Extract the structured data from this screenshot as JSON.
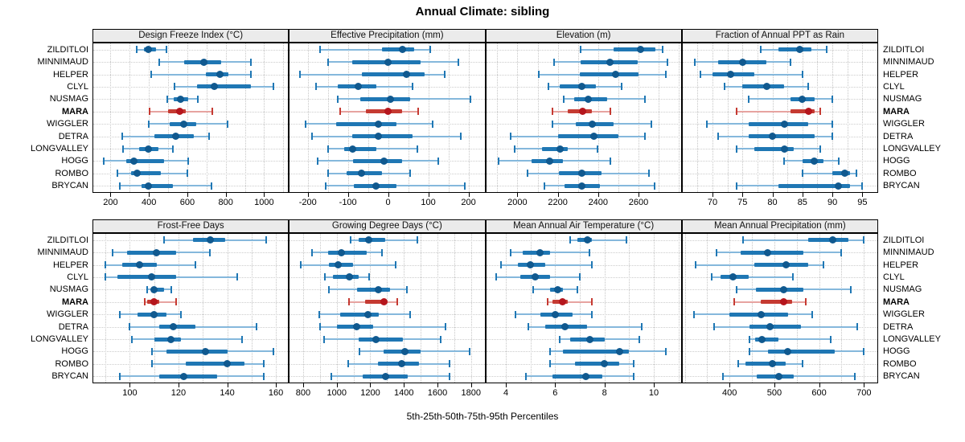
{
  "title": "Annual Climate: sibling",
  "caption": "5th-25th-50th-75th-95th Percentiles",
  "stations": [
    "ZILDITLOI",
    "MINNIMAUD",
    "HELPER",
    "CLYL",
    "NUSMAG",
    "MARA",
    "WIGGLER",
    "DETRA",
    "LONGVALLEY",
    "HOGG",
    "ROMBO",
    "BRYCAN"
  ],
  "highlight_station": "MARA",
  "colors": {
    "normal": {
      "light": "#85b8dc",
      "main": "#1f77b4",
      "dot": "#10598f"
    },
    "highlight": {
      "light": "#e7a3a0",
      "main": "#c53a32",
      "dot": "#b5161d"
    },
    "grid": "#c6c6c6",
    "strip_bg": "#ebebeb",
    "border": "#000000"
  },
  "chart_data": {
    "type": "percentile-dotplot-trellis",
    "percentile_labels": [
      "5th",
      "25th",
      "50th",
      "75th",
      "95th"
    ],
    "legend_note": "median dot, 25-75 thick bar, 5-95 whisker; MARA highlighted red",
    "grid": "dotted",
    "panels": [
      {
        "title": "Design Freeze Index (°C)",
        "xlim": [
          110,
          1125
        ],
        "ticks": [
          200,
          400,
          600,
          800,
          1000
        ],
        "minor_step": 100,
        "values": [
          [
            335,
            375,
            395,
            435,
            490
          ],
          [
            455,
            585,
            685,
            775,
            930
          ],
          [
            410,
            695,
            770,
            815,
            930
          ],
          [
            535,
            650,
            740,
            930,
            1050
          ],
          [
            495,
            530,
            565,
            605,
            655
          ],
          [
            405,
            500,
            560,
            590,
            730
          ],
          [
            400,
            510,
            580,
            645,
            810
          ],
          [
            260,
            430,
            540,
            635,
            715
          ],
          [
            265,
            350,
            395,
            450,
            525
          ],
          [
            165,
            280,
            320,
            480,
            605
          ],
          [
            235,
            305,
            340,
            460,
            600
          ],
          [
            250,
            360,
            395,
            525,
            725
          ]
        ]
      },
      {
        "title": "Effective Precipitation (mm)",
        "xlim": [
          -245,
          240
        ],
        "ticks": [
          -200,
          -100,
          0,
          100,
          200
        ],
        "minor_step": 50,
        "values": [
          [
            -170,
            -15,
            35,
            65,
            105
          ],
          [
            -150,
            -90,
            0,
            80,
            175
          ],
          [
            -220,
            -65,
            45,
            90,
            140
          ],
          [
            -180,
            -125,
            -75,
            -30,
            60
          ],
          [
            -125,
            -70,
            5,
            55,
            205
          ],
          [
            -120,
            -55,
            0,
            35,
            75
          ],
          [
            -205,
            -130,
            -25,
            20,
            110
          ],
          [
            -190,
            -90,
            -25,
            60,
            180
          ],
          [
            -150,
            -110,
            -88,
            -30,
            72
          ],
          [
            -175,
            -88,
            -10,
            35,
            125
          ],
          [
            -150,
            -103,
            -66,
            -15,
            55
          ],
          [
            -155,
            -85,
            -30,
            20,
            190
          ]
        ]
      },
      {
        "title": "Elevation (m)",
        "xlim": [
          1845,
          2810
        ],
        "ticks": [
          2000,
          2200,
          2400,
          2600
        ],
        "minor_step": 100,
        "values": [
          [
            2315,
            2475,
            2610,
            2685,
            2720
          ],
          [
            2180,
            2315,
            2460,
            2595,
            2745
          ],
          [
            2105,
            2310,
            2485,
            2600,
            2735
          ],
          [
            2155,
            2210,
            2320,
            2390,
            2515
          ],
          [
            2230,
            2280,
            2350,
            2445,
            2630
          ],
          [
            2175,
            2250,
            2325,
            2370,
            2460
          ],
          [
            2175,
            2290,
            2370,
            2475,
            2665
          ],
          [
            1965,
            2200,
            2380,
            2500,
            2630
          ],
          [
            1985,
            2120,
            2210,
            2250,
            2395
          ],
          [
            1905,
            2070,
            2160,
            2225,
            2460
          ],
          [
            2050,
            2205,
            2320,
            2415,
            2650
          ],
          [
            2135,
            2235,
            2320,
            2410,
            2680
          ]
        ]
      },
      {
        "title": "Fraction of Annual PPT as Rain",
        "xlim": [
          65,
          97.5
        ],
        "ticks": [
          70,
          75,
          80,
          85,
          90,
          95
        ],
        "minor_step": 2.5,
        "values": [
          [
            78,
            81,
            84.5,
            86.5,
            89
          ],
          [
            67,
            71,
            75,
            79,
            83
          ],
          [
            68,
            70,
            73,
            77,
            85
          ],
          [
            72,
            75,
            79,
            82,
            86
          ],
          [
            76,
            83,
            85,
            87,
            90
          ],
          [
            74,
            83,
            86,
            87,
            88
          ],
          [
            69,
            76,
            82,
            86,
            90
          ],
          [
            71,
            76,
            80,
            87,
            90
          ],
          [
            74,
            77,
            82,
            83.5,
            88
          ],
          [
            82,
            85,
            87,
            88.5,
            91
          ],
          [
            85,
            90,
            92,
            93,
            94
          ],
          [
            74,
            81,
            91,
            93,
            95
          ]
        ]
      },
      {
        "title": "Frost-Free Days",
        "xlim": [
          85,
          165
        ],
        "ticks": [
          100,
          120,
          140,
          160
        ],
        "minor_step": 10,
        "values": [
          [
            114,
            126,
            133,
            139,
            156
          ],
          [
            93,
            99,
            111,
            119,
            133
          ],
          [
            90,
            97,
            104,
            111,
            127
          ],
          [
            90,
            95,
            109,
            119,
            144
          ],
          [
            107,
            109,
            110,
            114,
            117
          ],
          [
            106,
            107,
            110,
            112,
            119
          ],
          [
            96,
            103,
            110,
            115,
            121
          ],
          [
            100,
            112,
            118,
            127,
            152
          ],
          [
            101,
            110,
            117,
            121,
            146
          ],
          [
            109,
            115,
            131,
            140,
            159
          ],
          [
            109,
            123,
            140,
            147,
            155
          ],
          [
            96,
            112,
            122,
            136,
            155
          ]
        ]
      },
      {
        "title": "Growing Degree Days (°C)",
        "xlim": [
          720,
          1880
        ],
        "ticks": [
          800,
          1000,
          1200,
          1400,
          1600,
          1800
        ],
        "minor_step": 100,
        "values": [
          [
            1085,
            1130,
            1190,
            1290,
            1480
          ],
          [
            855,
            950,
            1030,
            1180,
            1270
          ],
          [
            785,
            955,
            1010,
            1095,
            1350
          ],
          [
            930,
            975,
            1075,
            1130,
            1195
          ],
          [
            955,
            1120,
            1250,
            1315,
            1420
          ],
          [
            1075,
            1170,
            1280,
            1300,
            1360
          ],
          [
            895,
            1020,
            1185,
            1250,
            1435
          ],
          [
            900,
            1000,
            1120,
            1215,
            1650
          ],
          [
            925,
            1130,
            1235,
            1395,
            1620
          ],
          [
            1135,
            1280,
            1405,
            1500,
            1790
          ],
          [
            1070,
            1245,
            1385,
            1490,
            1670
          ],
          [
            970,
            1155,
            1290,
            1425,
            1670
          ]
        ]
      },
      {
        "title": "Mean Annual Air Temperature (°C)",
        "xlim": [
          3.2,
          11.1
        ],
        "ticks": [
          4,
          6,
          8,
          10
        ],
        "minor_step": 1,
        "values": [
          [
            6.6,
            6.9,
            7.3,
            7.5,
            8.9
          ],
          [
            4.2,
            4.7,
            5.4,
            5.8,
            7.4
          ],
          [
            3.8,
            4.5,
            5.0,
            5.6,
            7.5
          ],
          [
            3.6,
            4.6,
            5.2,
            5.8,
            7.0
          ],
          [
            5.1,
            5.8,
            6.1,
            6.3,
            6.9
          ],
          [
            5.7,
            5.9,
            6.3,
            6.5,
            7.5
          ],
          [
            4.4,
            5.4,
            6.0,
            6.7,
            7.5
          ],
          [
            4.9,
            5.6,
            6.4,
            7.3,
            9.5
          ],
          [
            6.2,
            6.6,
            7.4,
            8.0,
            9.4
          ],
          [
            5.8,
            6.3,
            8.6,
            9.0,
            10.5
          ],
          [
            5.8,
            6.8,
            8.0,
            8.6,
            9.2
          ],
          [
            4.8,
            5.9,
            7.25,
            7.9,
            9.2
          ]
        ]
      },
      {
        "title": "Mean Annual Precipitation (mm)",
        "xlim": [
          295,
          730
        ],
        "ticks": [
          400,
          500,
          600,
          700
        ],
        "minor_step": 50,
        "values": [
          [
            430,
            575,
            630,
            665,
            700
          ],
          [
            370,
            425,
            485,
            565,
            650
          ],
          [
            325,
            455,
            527,
            575,
            610
          ],
          [
            360,
            380,
            408,
            442,
            542
          ],
          [
            415,
            458,
            520,
            565,
            670
          ],
          [
            410,
            470,
            520,
            540,
            570
          ],
          [
            320,
            400,
            470,
            530,
            585
          ],
          [
            365,
            445,
            490,
            560,
            685
          ],
          [
            445,
            457,
            472,
            510,
            625
          ],
          [
            445,
            485,
            530,
            635,
            700
          ],
          [
            420,
            435,
            495,
            525,
            563
          ],
          [
            385,
            460,
            510,
            543,
            680
          ]
        ]
      }
    ]
  }
}
